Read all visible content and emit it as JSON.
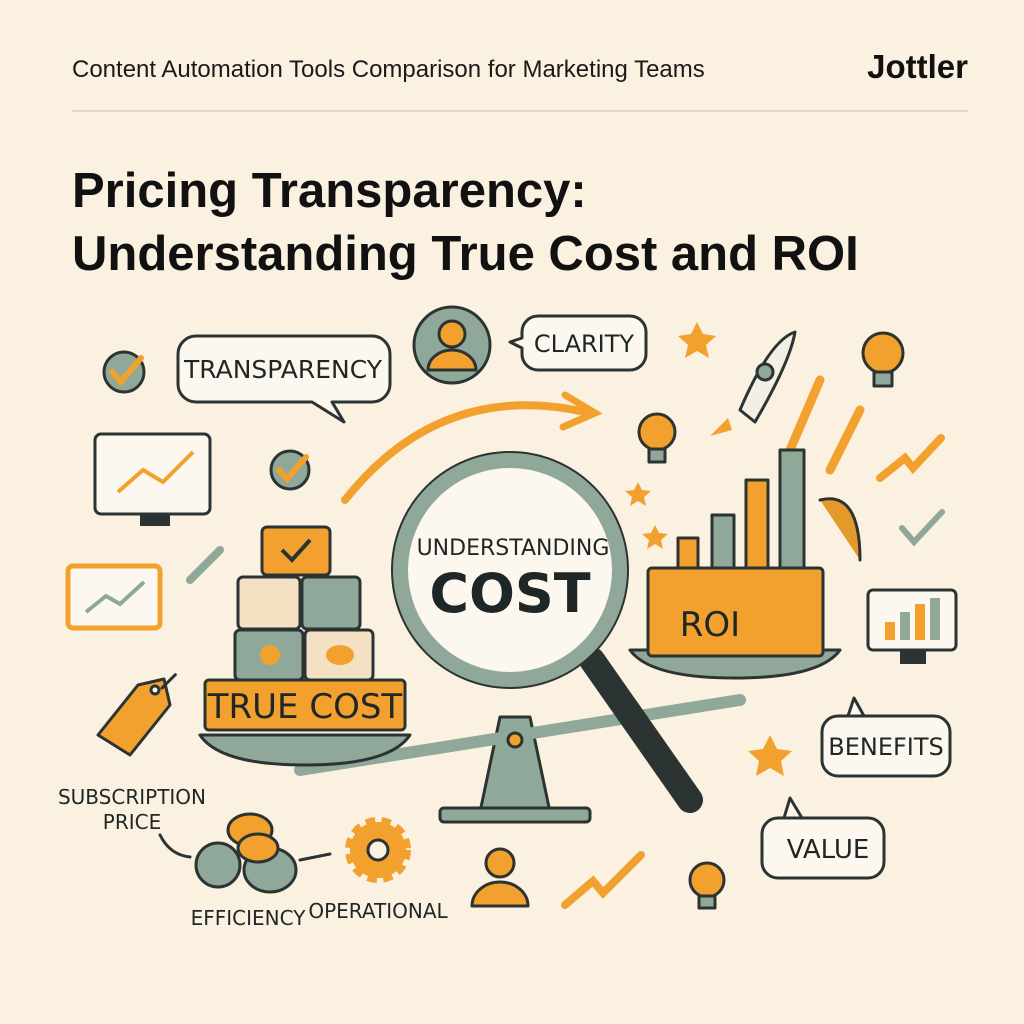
{
  "header": {
    "subtitle": "Content Automation Tools Comparison for Marketing Teams",
    "brand": "Jottler"
  },
  "title": {
    "lines": [
      "Pricing Transparency:",
      "Understanding True Cost and ROI"
    ]
  },
  "illustration": {
    "bubbles": [
      "TRANSPARENCY",
      "CLARITY",
      "BENEFITS",
      "VALUE"
    ],
    "magnifier": {
      "caption": "UNDERSTANDING",
      "word": "COST"
    },
    "true_cost": "TRUE COST",
    "roi": "ROI",
    "labels": {
      "subscription": [
        "SUBSCRIPTION",
        "PRICE"
      ],
      "efficiency": "EFFICIENCY",
      "operational": "OPERATIONAL"
    }
  }
}
